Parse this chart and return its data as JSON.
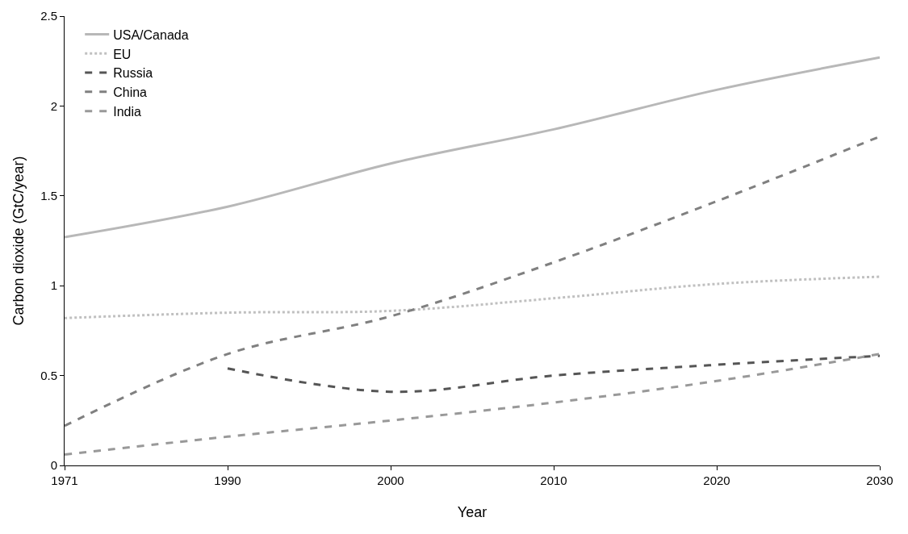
{
  "chart_data": {
    "type": "line",
    "xlabel": "Year",
    "ylabel": "Carbon dioxide (GtC/year)",
    "categories": [
      "1971",
      "1990",
      "2000",
      "2010",
      "2020",
      "2030"
    ],
    "ylim": [
      0,
      2.5
    ],
    "yticks": [
      0,
      0.5,
      1,
      1.5,
      2,
      2.5
    ],
    "legend": "top left",
    "marker": "none",
    "series": [
      {
        "name": "USA/Canada",
        "color": "#b8b8b8",
        "line_style": "solid",
        "values": [
          1.27,
          1.44,
          1.68,
          1.87,
          2.09,
          2.27
        ]
      },
      {
        "name": "EU",
        "color": "#c0c0c0",
        "line_style": "dotted",
        "values": [
          0.82,
          0.85,
          0.86,
          0.93,
          1.01,
          1.05
        ]
      },
      {
        "name": "Russia",
        "color": "#555555",
        "line_style": "dashed",
        "values": [
          null,
          0.54,
          0.41,
          0.5,
          0.56,
          0.61
        ]
      },
      {
        "name": "China",
        "color": "#808080",
        "line_style": "dashed",
        "values": [
          0.22,
          0.62,
          0.83,
          1.13,
          1.47,
          1.83
        ]
      },
      {
        "name": "India",
        "color": "#999999",
        "line_style": "dashed",
        "values": [
          0.06,
          0.16,
          0.25,
          0.35,
          0.47,
          0.62
        ]
      }
    ]
  }
}
